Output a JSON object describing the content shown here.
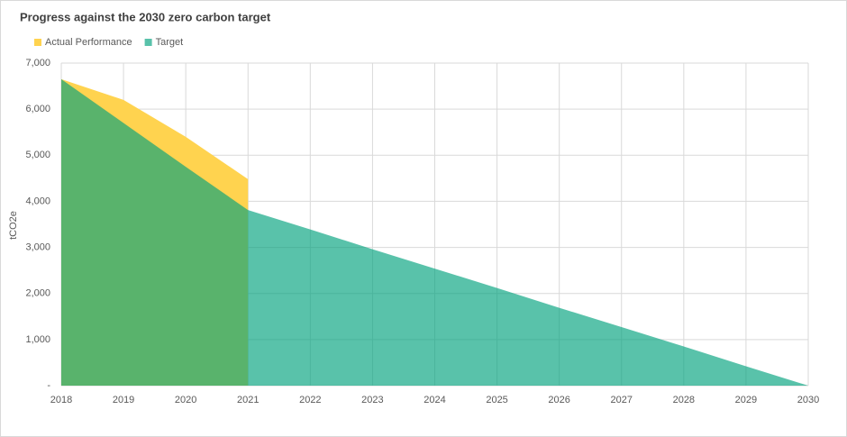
{
  "chart_data": {
    "type": "area",
    "title": "Progress against the 2030 zero carbon target",
    "y_label": "tCO2e",
    "x": [
      2018,
      2019,
      2020,
      2021,
      2022,
      2023,
      2024,
      2025,
      2026,
      2027,
      2028,
      2029,
      2030
    ],
    "series": [
      {
        "name": "Actual Performance",
        "color": "#ffd34f",
        "values": [
          6650,
          6200,
          5400,
          4480,
          null,
          null,
          null,
          null,
          null,
          null,
          null,
          null,
          null
        ]
      },
      {
        "name": "Target",
        "color": "#00a17d",
        "values": [
          6650,
          5700,
          4750,
          3810,
          3390,
          2960,
          2540,
          2120,
          1690,
          1270,
          850,
          420,
          0
        ]
      }
    ],
    "xlim": [
      2018,
      2030
    ],
    "xticks": [
      2018,
      2019,
      2020,
      2021,
      2022,
      2023,
      2024,
      2025,
      2026,
      2027,
      2028,
      2029,
      2030
    ],
    "ylim": [
      0,
      7000
    ],
    "yticks": [
      {
        "value": 0,
        "label": "-"
      },
      {
        "value": 1000,
        "label": "1,000"
      },
      {
        "value": 2000,
        "label": "2,000"
      },
      {
        "value": 3000,
        "label": "3,000"
      },
      {
        "value": 4000,
        "label": "4,000"
      },
      {
        "value": 5000,
        "label": "5,000"
      },
      {
        "value": 6000,
        "label": "6,000"
      },
      {
        "value": 7000,
        "label": "7,000"
      }
    ],
    "grid": true,
    "legend": "top-left"
  }
}
